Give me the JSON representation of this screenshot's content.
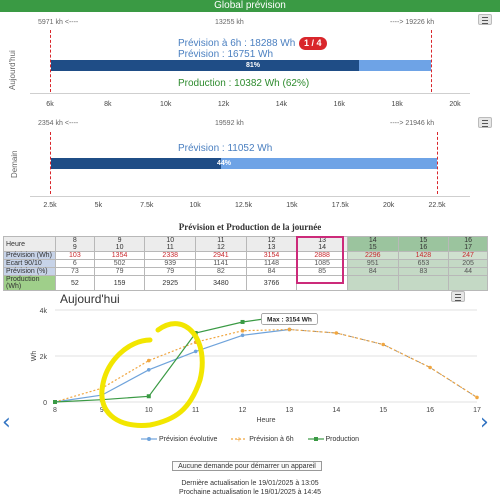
{
  "header": {
    "title": "Global prévision"
  },
  "today_panel": {
    "label": "Aujourd'hui",
    "span_left": "5971 kh <----",
    "span_mid": "13255 kh",
    "span_right": "----> 19226 kh",
    "prevision_6h": "Prévision à 6h : 18288 Wh",
    "badge": "1 / 4",
    "prevision": "Prévision : 16751 Wh",
    "production": "Production : 10382 Wh (62%)",
    "bar_pct_label": "81%",
    "bar_fraction": 0.81,
    "axis_ticks": [
      "6k",
      "8k",
      "10k",
      "12k",
      "14k",
      "16k",
      "18k",
      "20k"
    ]
  },
  "tomorrow_panel": {
    "label": "Demain",
    "span_left": "2354 kh <----",
    "span_mid": "19592 kh",
    "span_right": "----> 21946 kh",
    "prevision": "Prévision : 11052 Wh",
    "bar_pct_label": "44%",
    "bar_fraction": 0.44,
    "axis_ticks": [
      "2.5k",
      "5k",
      "7.5k",
      "10k",
      "12.5k",
      "15k",
      "17.5k",
      "20k",
      "22.5k"
    ]
  },
  "table": {
    "title": "Prévision et Production de la journée",
    "row_labels": [
      "Heure",
      "Prévision (Wh)",
      "Ecart 90/10",
      "Prévision (%)",
      "Production (Wh)"
    ],
    "hours_top": [
      "8",
      "9",
      "10",
      "11",
      "12",
      "13",
      "14",
      "15",
      "16"
    ],
    "hours_bottom": [
      "9",
      "10",
      "11",
      "12",
      "13",
      "14",
      "15",
      "16",
      "17"
    ],
    "prevision": [
      "103",
      "1354",
      "2338",
      "2941",
      "3154",
      "2888",
      "2296",
      "1428",
      "247"
    ],
    "ecart": [
      "6",
      "502",
      "939",
      "1141",
      "1148",
      "1085",
      "951",
      "653",
      "205"
    ],
    "prevision_pct": [
      "73",
      "79",
      "79",
      "82",
      "84",
      "85",
      "84",
      "83",
      "44"
    ],
    "production": [
      "52",
      "159",
      "2925",
      "3480",
      "3766",
      "",
      "",
      "",
      ""
    ]
  },
  "chart_data": {
    "type": "line",
    "title": "Aujourd'hui",
    "xlabel": "Heure",
    "ylabel": "Wh",
    "xlim": [
      8,
      17
    ],
    "ylim": [
      0,
      4000
    ],
    "x_ticks": [
      "8",
      "9",
      "10",
      "11",
      "12",
      "13",
      "14",
      "15",
      "16",
      "17"
    ],
    "y_ticks": [
      "0",
      "2k",
      "4k"
    ],
    "tooltip": "Max : 3154 Wh",
    "series": [
      {
        "name": "Prévision évolutive",
        "color": "#6fa3db",
        "points": [
          [
            8,
            0
          ],
          [
            9,
            300
          ],
          [
            10,
            1400
          ],
          [
            11,
            2200
          ],
          [
            12,
            2900
          ],
          [
            13,
            3154
          ]
        ]
      },
      {
        "name": "Prévision à 6h",
        "color": "#f0a640",
        "points": [
          [
            8,
            0
          ],
          [
            9,
            600
          ],
          [
            10,
            1800
          ],
          [
            11,
            2600
          ],
          [
            12,
            3100
          ],
          [
            13,
            3154
          ],
          [
            14,
            3000
          ],
          [
            15,
            2500
          ],
          [
            16,
            1500
          ],
          [
            17,
            200
          ]
        ]
      },
      {
        "name": "Production",
        "color": "#3a9a44",
        "points": [
          [
            8,
            0
          ],
          [
            9,
            100
          ],
          [
            10,
            250
          ],
          [
            11,
            3000
          ],
          [
            12,
            3480
          ],
          [
            13,
            3766
          ]
        ]
      }
    ],
    "dashed_tail": [
      [
        13,
        3154
      ],
      [
        14,
        3000
      ],
      [
        15,
        2500
      ],
      [
        16,
        1500
      ],
      [
        17,
        200
      ]
    ]
  },
  "notice": "Aucune demande pour démarrer un appareil",
  "footer": {
    "last_update": "Dernière actualisation le 19/01/2025 à 13:05",
    "next_update": "Prochaine actualisation le 19/01/2025 à 14:45"
  },
  "colors": {
    "header": "#3a9a44",
    "bar_dark": "#1f4d86",
    "bar_light": "#6ea3e6",
    "red": "#d9262b",
    "highlight": "#f2e600"
  }
}
